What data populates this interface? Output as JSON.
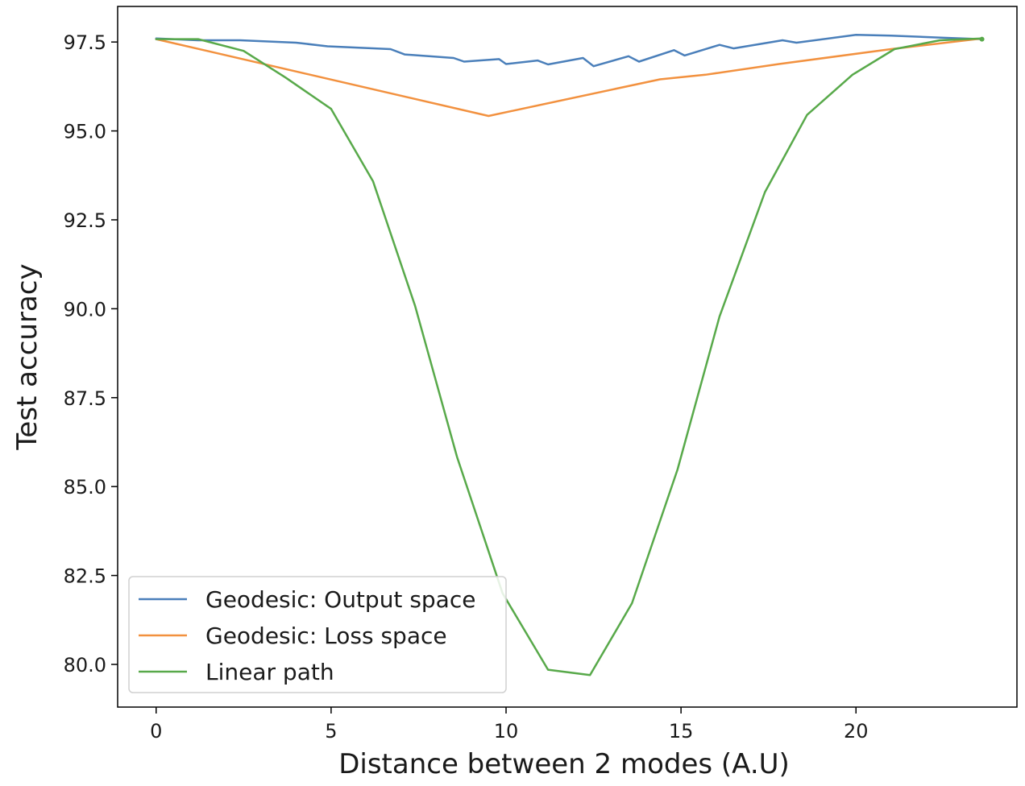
{
  "chart_data": {
    "type": "line",
    "xlabel": "Distance between 2 modes (A.U)",
    "ylabel": "Test accuracy",
    "xlim": [
      -1.1,
      24.6
    ],
    "ylim": [
      78.8,
      98.5
    ],
    "xticks": [
      0,
      5,
      10,
      15,
      20
    ],
    "xtick_labels": [
      "0",
      "5",
      "10",
      "15",
      "20"
    ],
    "yticks": [
      80.0,
      82.5,
      85.0,
      87.5,
      90.0,
      92.5,
      95.0,
      97.5
    ],
    "ytick_labels": [
      "80.0",
      "82.5",
      "85.0",
      "87.5",
      "90.0",
      "92.5",
      "95.0",
      "97.5"
    ],
    "grid": false,
    "legend_position": "lower-left",
    "series": [
      {
        "name": "Geodesic: Output space",
        "color": "#4a7fba",
        "x": [
          0,
          1.2,
          2.4,
          4.0,
          4.9,
          6.7,
          7.1,
          8.5,
          8.8,
          9.8,
          10.0,
          10.9,
          11.2,
          12.2,
          12.5,
          13.5,
          13.8,
          14.8,
          15.1,
          16.1,
          16.5,
          17.9,
          18.3,
          20.0,
          21.0,
          22.5,
          23.6
        ],
        "y": [
          97.6,
          97.55,
          97.55,
          97.48,
          97.38,
          97.3,
          97.15,
          97.05,
          96.95,
          97.02,
          96.88,
          96.98,
          96.87,
          97.05,
          96.82,
          97.1,
          96.95,
          97.27,
          97.12,
          97.42,
          97.32,
          97.55,
          97.48,
          97.7,
          97.68,
          97.62,
          97.58
        ]
      },
      {
        "name": "Geodesic: Loss space",
        "color": "#f2913f",
        "x": [
          0,
          9.5,
          14.4,
          15.7,
          17.8,
          21.0,
          23.6
        ],
        "y": [
          97.58,
          95.42,
          96.45,
          96.58,
          96.88,
          97.3,
          97.6
        ]
      },
      {
        "name": "Linear path",
        "color": "#58a94a",
        "x": [
          0,
          1.2,
          2.5,
          3.7,
          5.0,
          6.2,
          7.4,
          8.6,
          9.9,
          11.2,
          12.4,
          13.6,
          14.9,
          16.1,
          17.4,
          18.6,
          19.9,
          21.1,
          22.4,
          23.6
        ],
        "y": [
          97.58,
          97.58,
          97.25,
          96.5,
          95.62,
          93.58,
          90.08,
          85.83,
          82.0,
          79.85,
          79.7,
          81.72,
          85.48,
          89.78,
          93.28,
          95.45,
          96.58,
          97.3,
          97.55,
          97.6
        ]
      }
    ]
  }
}
